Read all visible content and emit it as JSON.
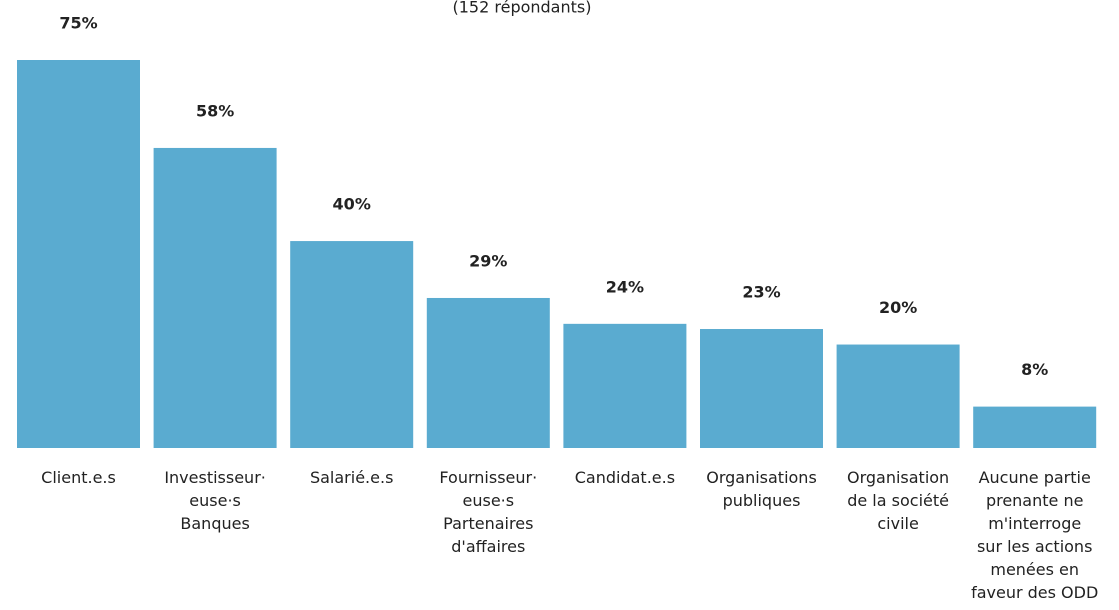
{
  "chart_data": {
    "type": "bar",
    "subtitle": "(152 répondants)",
    "categories": [
      "Client.e.s",
      "Investisseur·\neuse·s\nBanques",
      "Salarié.e.s",
      "Fournisseur·\neuse·s\nPartenaires\nd'affaires",
      "Candidat.e.s",
      "Organisations\npubliques",
      "Organisation\nde la société\ncivile",
      "Aucune partie\nprenante ne\nm'interroge\nsur les actions\nmenées en\nfaveur des ODD"
    ],
    "values": [
      75,
      58,
      40,
      29,
      24,
      23,
      20,
      8
    ],
    "value_labels": [
      "75%",
      "58%",
      "40%",
      "29%",
      "24%",
      "23%",
      "20%",
      "8%"
    ],
    "color": "#5aabd0",
    "ylim": [
      0,
      75
    ]
  }
}
